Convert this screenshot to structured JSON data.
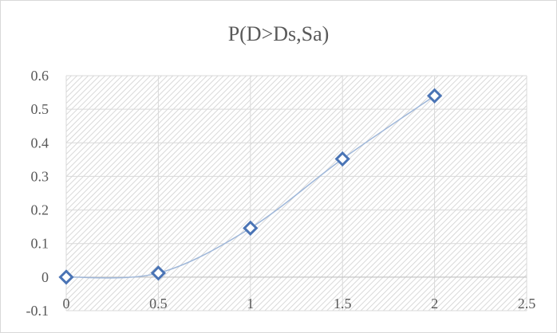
{
  "chart_data": {
    "type": "scatter",
    "title": "P(D>Ds,Sa)",
    "xlabel": "",
    "ylabel": "",
    "xlim": [
      0,
      2.5
    ],
    "ylim": [
      -0.1,
      0.6
    ],
    "x_ticks": [
      "0",
      "0.5",
      "1",
      "1.5",
      "2",
      "2.5"
    ],
    "y_ticks": [
      "-0.1",
      "0",
      "0.1",
      "0.2",
      "0.3",
      "0.4",
      "0.5",
      "0.6"
    ],
    "grid": true,
    "legend": "none",
    "line_style": "smooth",
    "marker": "diamond-open",
    "series": [
      {
        "x": [
          0,
          0.5,
          1,
          1.5,
          2
        ],
        "y": [
          0.0,
          0.012,
          0.146,
          0.352,
          0.54
        ]
      }
    ],
    "colors": {
      "marker": "#4a74b5",
      "line": "#9fb7d9",
      "grid": "#d9d9d9",
      "hatch": "#d0d0d0"
    }
  }
}
